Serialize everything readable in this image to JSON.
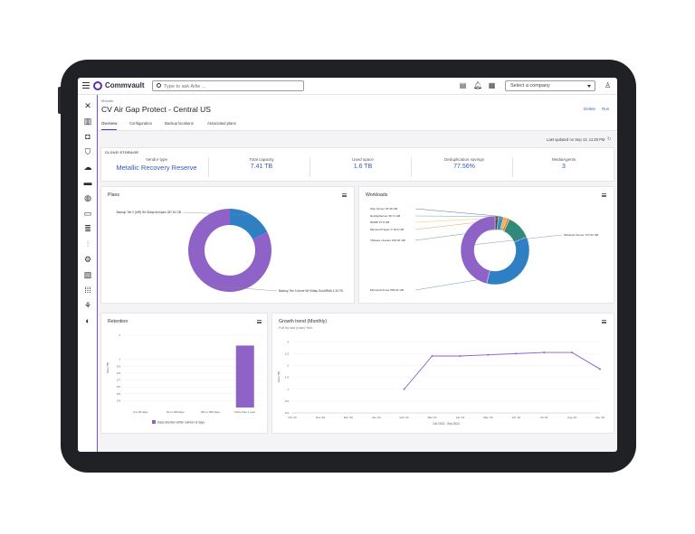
{
  "app": {
    "name": "Commvault"
  },
  "search": {
    "placeholder": "Type to ask Arlie ..."
  },
  "company_select": {
    "label": "Select a company"
  },
  "breadcrumb": "Metallic",
  "page": {
    "title": "CV Air Gap Protect - Central US",
    "actions": {
      "delete": "Delete",
      "run": "Run"
    },
    "tabs": [
      "Overview",
      "Configuration",
      "Backup locations",
      "Associated plans"
    ],
    "active_tab": "Overview",
    "last_updated": "Last updated on Sep 13, 11:28 PM"
  },
  "cloud_storage": {
    "title": "CLOUD STORAGE",
    "metrics": [
      {
        "label": "Vendor type",
        "value": "Metallic Recovery Reserve"
      },
      {
        "label": "Total capacity",
        "value": "7.41 TB"
      },
      {
        "label": "Used space",
        "value": "1.6 TB"
      },
      {
        "label": "Deduplication savings",
        "value": "77.56%"
      },
      {
        "label": "MediaAgents",
        "value": "3"
      }
    ]
  },
  "plans_card": {
    "title": "Plans",
    "chart_data": {
      "type": "pie",
      "labels": [
        "Backup Tier 0 (MR) Wr 30day Archpsrv",
        "Backup Tier 0 Azure Wr 90day GovARMA"
      ],
      "display_labels": [
        "Backup Tier 0 (MR) Wr 30day Archpsrv 287.61 GB",
        "Backup Tier 0 Azure Wr 90day GovARMA 1.30 TB"
      ],
      "values": [
        287.61,
        1331.2
      ],
      "colors": [
        "#2f7fc4",
        "#8e62c7"
      ]
    }
  },
  "workloads_card": {
    "title": "Workloads",
    "chart_data": {
      "type": "pie",
      "labels": [
        "SQL Server",
        "NetAppServer",
        "NDMP",
        "Microsoft Hyper-V",
        "VMware vCenter",
        "Microsoft Azure",
        "Windows Server"
      ],
      "display_labels": [
        "SQL Server 25.36 GB",
        "NetAppServer 38.71 GB",
        "NDMP 27.8 GB",
        "Microsoft Hyper-V 18.6 GB",
        "VMware vCenter 183.94 GB",
        "Microsoft Azure 556.91 GB",
        "Windows Server 727.62 GB"
      ],
      "values": [
        25.36,
        38.71,
        27.8,
        18.6,
        183.94,
        556.91,
        727.62
      ],
      "colors": [
        "#4a4a4a",
        "#3a8fc4",
        "#f0b24a",
        "#e3834a",
        "#2f8a7a",
        "#2f7fc4",
        "#8e62c7"
      ]
    }
  },
  "retention_card": {
    "title": "Retention",
    "chart_data": {
      "type": "bar",
      "categories": [
        "0 to 90 days",
        "91 to 180 days",
        "181 to 365 days",
        "More than 1 year"
      ],
      "values": [
        0.1,
        0,
        0,
        1.2
      ],
      "ylabel": "Size (TB)",
      "yticks": [
        "0.4",
        "0.5",
        "0.6",
        "0.7",
        "0.8",
        "0.9",
        "1",
        "2"
      ],
      "legend": "Data retention within number of days",
      "color": "#8e62c7"
    }
  },
  "growth_card": {
    "title": "Growth trend (Monthly)",
    "subtitle": "Full by last (max) %ch",
    "chart_data": {
      "type": "line",
      "categories": [
        "Oct '23",
        "Nov '23",
        "Dec '23",
        "Jan '24",
        "Feb '24",
        "Mar '24",
        "Apr '24",
        "May '24",
        "Jun '24",
        "Jul '24",
        "Aug '24",
        "Sep '24"
      ],
      "values": [
        null,
        null,
        null,
        null,
        1.0,
        2.4,
        2.4,
        2.45,
        2.5,
        2.55,
        2.55,
        1.85
      ],
      "ylabel": "Size (TB)",
      "yticks": [
        "0.5",
        "1",
        "1.5",
        "2",
        "2.5",
        "3"
      ],
      "xlabel": "Oct 2023 - Sep 2024",
      "ylim": [
        0,
        3.2
      ],
      "color": "#8e62c7"
    }
  }
}
